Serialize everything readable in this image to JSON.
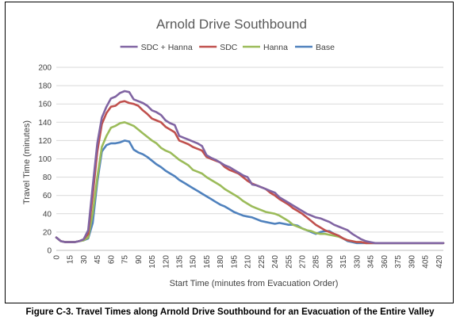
{
  "caption": "Figure C-3.  Travel Times along Arnold Drive Southbound for an Evacuation of the Entire Valley",
  "chart_data": {
    "type": "line",
    "title": "Arnold Drive Southbound",
    "xlabel": "Start Time (minutes from Evacuation Order)",
    "ylabel": "Travel Time (minutes)",
    "x": [
      0,
      5,
      10,
      15,
      20,
      25,
      30,
      35,
      40,
      45,
      50,
      55,
      60,
      65,
      70,
      75,
      80,
      85,
      90,
      95,
      100,
      105,
      110,
      115,
      120,
      125,
      130,
      135,
      140,
      145,
      150,
      155,
      160,
      165,
      170,
      175,
      180,
      185,
      190,
      195,
      200,
      205,
      210,
      215,
      220,
      225,
      230,
      235,
      240,
      245,
      250,
      255,
      260,
      265,
      270,
      275,
      280,
      285,
      290,
      295,
      300,
      305,
      310,
      315,
      320,
      325,
      330,
      335,
      340,
      345,
      350,
      355,
      360,
      365,
      370,
      375,
      380,
      385,
      390,
      395,
      400,
      405,
      410,
      415,
      420,
      425
    ],
    "x_tick_labels": [
      "0",
      "15",
      "30",
      "45",
      "60",
      "75",
      "90",
      "105",
      "120",
      "135",
      "150",
      "165",
      "180",
      "195",
      "210",
      "225",
      "240",
      "255",
      "270",
      "285",
      "300",
      "315",
      "330",
      "345",
      "360",
      "375",
      "390",
      "405",
      "420"
    ],
    "ylim": [
      0,
      200
    ],
    "y_ticks": [
      0,
      20,
      40,
      60,
      80,
      100,
      120,
      140,
      160,
      180,
      200
    ],
    "legend_position": "top",
    "grid": true,
    "series": [
      {
        "name": "SDC + Hanna",
        "color": "#8064A2",
        "values": [
          14,
          10,
          9,
          9,
          9,
          10,
          12,
          22,
          70,
          117,
          145,
          157,
          166,
          168,
          172,
          174,
          173,
          165,
          163,
          161,
          158,
          153,
          151,
          148,
          142,
          139,
          137,
          125,
          123,
          121,
          119,
          117,
          114,
          104,
          101,
          99,
          96,
          93,
          91,
          88,
          85,
          82,
          80,
          72,
          71,
          69,
          67,
          65,
          63,
          58,
          55,
          52,
          49,
          46,
          43,
          40,
          38,
          36,
          35,
          33,
          31,
          28,
          26,
          24,
          22,
          18,
          15,
          12,
          10,
          9,
          8,
          8,
          8,
          8,
          8,
          8,
          8,
          8,
          8,
          8,
          8,
          8,
          8,
          8,
          8,
          8
        ]
      },
      {
        "name": "SDC",
        "color": "#C0504D",
        "values": [
          14,
          10,
          9,
          9,
          9,
          10,
          12,
          18,
          60,
          108,
          138,
          150,
          157,
          158,
          162,
          163,
          161,
          160,
          158,
          153,
          149,
          144,
          142,
          140,
          135,
          132,
          129,
          120,
          118,
          116,
          113,
          111,
          109,
          102,
          100,
          98,
          96,
          91,
          88,
          86,
          84,
          80,
          76,
          73,
          71,
          69,
          67,
          63,
          60,
          56,
          53,
          50,
          46,
          43,
          40,
          36,
          32,
          28,
          25,
          22,
          20,
          18,
          16,
          13,
          11,
          10,
          9,
          9,
          8,
          8,
          8,
          8,
          8,
          8,
          8,
          8,
          8,
          8,
          8,
          8,
          8,
          8,
          8,
          8,
          8,
          8
        ]
      },
      {
        "name": "Hanna",
        "color": "#9BBB59",
        "values": [
          14,
          10,
          9,
          9,
          9,
          10,
          11,
          14,
          40,
          80,
          113,
          125,
          134,
          136,
          139,
          140,
          138,
          136,
          132,
          128,
          124,
          120,
          117,
          112,
          109,
          107,
          103,
          99,
          96,
          93,
          88,
          86,
          84,
          80,
          77,
          74,
          71,
          67,
          64,
          61,
          58,
          54,
          51,
          48,
          46,
          44,
          42,
          41,
          40,
          38,
          35,
          32,
          28,
          26,
          24,
          22,
          21,
          19,
          18,
          18,
          17,
          16,
          15,
          13,
          11,
          10,
          9,
          9,
          8,
          8,
          8,
          8,
          8,
          8,
          8,
          8,
          8,
          8,
          8,
          8,
          8,
          8,
          8,
          8,
          8,
          8
        ]
      },
      {
        "name": "Base",
        "color": "#4F81BD",
        "values": [
          14,
          10,
          9,
          9,
          9,
          10,
          11,
          13,
          30,
          75,
          108,
          115,
          117,
          117,
          118,
          120,
          119,
          110,
          107,
          105,
          102,
          98,
          94,
          91,
          87,
          84,
          81,
          77,
          74,
          71,
          68,
          65,
          62,
          59,
          56,
          53,
          50,
          48,
          45,
          42,
          40,
          38,
          37,
          36,
          34,
          32,
          31,
          30,
          29,
          30,
          29,
          28,
          28,
          27,
          24,
          22,
          20,
          18,
          20,
          21,
          21,
          18,
          16,
          13,
          10,
          9,
          8,
          8,
          8,
          8,
          8,
          8,
          8,
          8,
          8,
          8,
          8,
          8,
          8,
          8,
          8,
          8,
          8,
          8,
          8,
          8
        ]
      }
    ]
  }
}
